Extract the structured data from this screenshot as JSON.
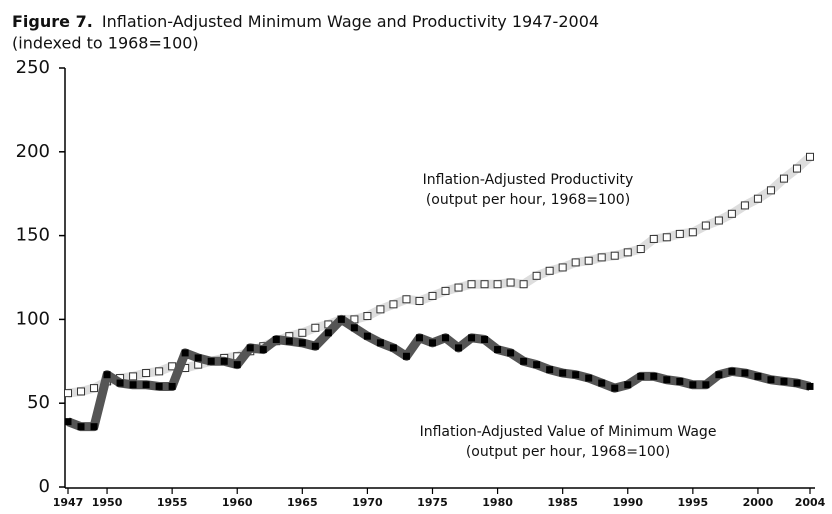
{
  "chart_data": {
    "type": "line",
    "title_label": "Figure 7.",
    "title": "Inflation-Adjusted Minimum Wage and Productivity 1947-2004",
    "subtitle": "(indexed to 1968=100)",
    "x": [
      1947,
      1948,
      1949,
      1950,
      1951,
      1952,
      1953,
      1954,
      1955,
      1956,
      1957,
      1958,
      1959,
      1960,
      1961,
      1962,
      1963,
      1964,
      1965,
      1966,
      1967,
      1968,
      1969,
      1970,
      1971,
      1972,
      1973,
      1974,
      1975,
      1976,
      1977,
      1978,
      1979,
      1980,
      1981,
      1982,
      1983,
      1984,
      1985,
      1986,
      1987,
      1988,
      1989,
      1990,
      1991,
      1992,
      1993,
      1994,
      1995,
      1996,
      1997,
      1998,
      1999,
      2000,
      2001,
      2002,
      2003,
      2004
    ],
    "series": [
      {
        "name": "Inflation-Adjusted Productivity",
        "color": "#dddddd",
        "marker_color": "#ffffff",
        "values": [
          56,
          57,
          59,
          63,
          65,
          66,
          68,
          69,
          72,
          71,
          73,
          75,
          77,
          78,
          81,
          84,
          87,
          90,
          92,
          95,
          97,
          100,
          100,
          102,
          106,
          109,
          112,
          111,
          114,
          117,
          119,
          121,
          121,
          121,
          122,
          121,
          126,
          129,
          131,
          134,
          135,
          137,
          138,
          140,
          142,
          148,
          149,
          151,
          152,
          156,
          159,
          163,
          168,
          172,
          177,
          184,
          190,
          197
        ]
      },
      {
        "name": "Inflation-Adjusted Value of Minimum Wage",
        "color": "#555555",
        "marker_color": "#000000",
        "values": [
          39,
          36,
          36,
          67,
          62,
          61,
          61,
          60,
          60,
          80,
          77,
          75,
          75,
          73,
          83,
          82,
          88,
          87,
          86,
          84,
          92,
          100,
          95,
          90,
          86,
          83,
          78,
          89,
          86,
          89,
          83,
          89,
          88,
          82,
          80,
          75,
          73,
          70,
          68,
          67,
          65,
          62,
          59,
          61,
          66,
          66,
          64,
          63,
          61,
          61,
          67,
          69,
          68,
          66,
          64,
          63,
          62,
          60
        ]
      }
    ],
    "annotations": [
      {
        "lines": [
          "Inflation-Adjusted Productivity",
          "(output per hour, 1968=100)"
        ]
      },
      {
        "lines": [
          "Inflation-Adjusted Value of Minimum Wage",
          "(output per hour, 1968=100)"
        ]
      }
    ],
    "xlim": [
      1947,
      2004
    ],
    "xticks": [
      1947,
      1950,
      1955,
      1960,
      1965,
      1970,
      1975,
      1980,
      1985,
      1990,
      1995,
      2000,
      2004
    ],
    "ylim": [
      0,
      250
    ],
    "yticks": [
      0,
      50,
      100,
      150,
      200,
      250
    ]
  }
}
